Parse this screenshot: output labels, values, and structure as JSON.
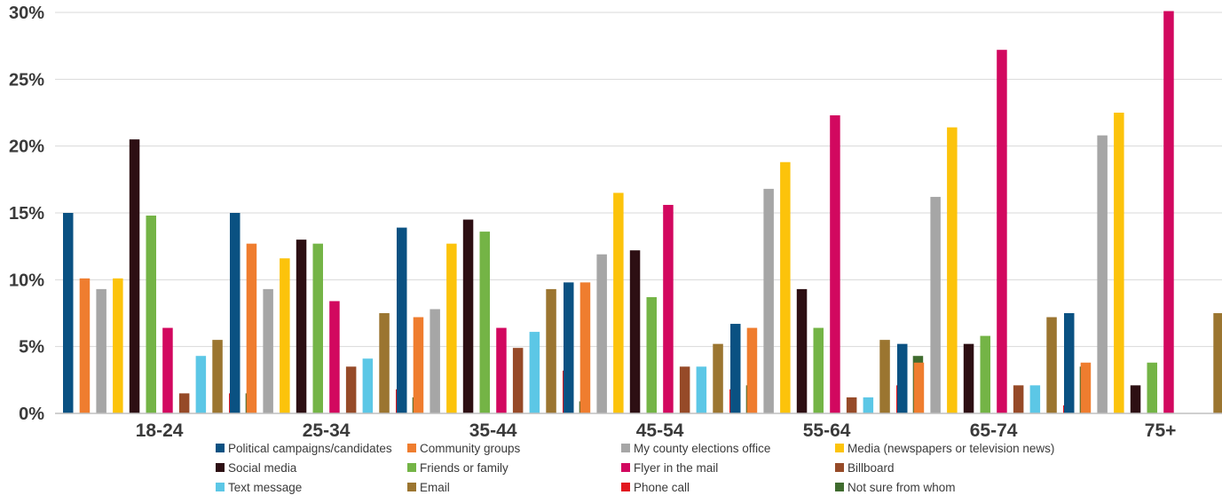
{
  "chart_data": {
    "type": "bar",
    "title": "",
    "xlabel": "",
    "ylabel": "",
    "ylim": [
      0,
      30
    ],
    "yticks": [
      0,
      5,
      10,
      15,
      20,
      25,
      30
    ],
    "ytick_labels": [
      "0%",
      "5%",
      "10%",
      "15%",
      "20%",
      "25%",
      "30%"
    ],
    "grid": true,
    "legend_position": "bottom",
    "categories": [
      "18-24",
      "25-34",
      "35-44",
      "45-54",
      "55-64",
      "65-74",
      "75+"
    ],
    "series": [
      {
        "name": "Political campaigns/candidates",
        "color": "#0a5182",
        "values": [
          15.0,
          15.0,
          13.9,
          9.8,
          6.7,
          5.2,
          7.5
        ]
      },
      {
        "name": "Community groups",
        "color": "#ef7d2f",
        "values": [
          10.1,
          12.7,
          7.2,
          9.8,
          6.4,
          3.8,
          3.8
        ]
      },
      {
        "name": "My county elections office",
        "color": "#a6a6a6",
        "values": [
          9.3,
          9.3,
          7.8,
          11.9,
          16.8,
          16.2,
          20.8
        ]
      },
      {
        "name": "Media (newspapers or television news)",
        "color": "#fcc30b",
        "values": [
          10.1,
          11.6,
          12.7,
          16.5,
          18.8,
          21.4,
          22.5
        ]
      },
      {
        "name": "Social media",
        "color": "#2d0f13",
        "values": [
          20.5,
          13.0,
          14.5,
          12.2,
          9.3,
          5.2,
          2.1
        ]
      },
      {
        "name": "Friends or family",
        "color": "#74b446",
        "values": [
          14.8,
          12.7,
          13.6,
          8.7,
          6.4,
          5.8,
          3.8
        ]
      },
      {
        "name": "Flyer in the mail",
        "color": "#d2085f",
        "values": [
          6.4,
          8.4,
          6.4,
          15.6,
          22.3,
          27.2,
          30.1
        ]
      },
      {
        "name": "Billboard",
        "color": "#964a28",
        "values": [
          1.5,
          3.5,
          4.9,
          3.5,
          1.2,
          2.1,
          0
        ]
      },
      {
        "name": "Text message",
        "color": "#5cc7e6",
        "values": [
          4.3,
          4.1,
          6.1,
          3.5,
          1.2,
          2.1,
          0
        ]
      },
      {
        "name": "Email",
        "color": "#9b7530",
        "values": [
          5.5,
          7.5,
          9.3,
          5.2,
          5.5,
          7.2,
          7.5
        ]
      },
      {
        "name": "Phone call",
        "color": "#e2171f",
        "values": [
          1.5,
          1.8,
          3.2,
          1.8,
          2.1,
          0.6,
          0
        ]
      },
      {
        "name": "Not sure from whom",
        "color": "#3f6b2e",
        "values": [
          1.5,
          1.2,
          0.9,
          2.1,
          4.3,
          3.5,
          2.1
        ]
      }
    ]
  }
}
